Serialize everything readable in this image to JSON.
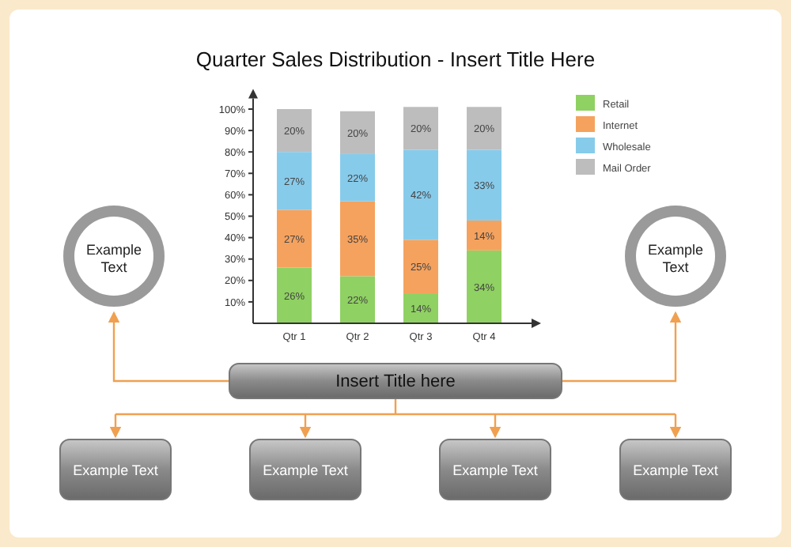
{
  "chart_data": {
    "type": "bar",
    "title": "Quarter Sales Distribution  - Insert Title Here",
    "stacked": true,
    "categories": [
      "Qtr 1",
      "Qtr 2",
      "Qtr 3",
      "Qtr 4"
    ],
    "series": [
      {
        "name": "Retail",
        "color": "#8fd162",
        "values": [
          26,
          22,
          14,
          34
        ],
        "value_labels": [
          "26%",
          "22%",
          "14%",
          "34%"
        ]
      },
      {
        "name": "Internet",
        "color": "#f5a25e",
        "values": [
          27,
          35,
          25,
          14
        ],
        "value_labels": [
          "27%",
          "35%",
          "25%",
          "14%"
        ]
      },
      {
        "name": "Wholesale",
        "color": "#87cbeb",
        "values": [
          27,
          22,
          42,
          33
        ],
        "value_labels": [
          "27%",
          "22%",
          "42%",
          "33%"
        ]
      },
      {
        "name": "Mail Order",
        "color": "#bdbdbd",
        "values": [
          20,
          20,
          20,
          20
        ],
        "value_labels": [
          "20%",
          "20%",
          "20%",
          "20%"
        ]
      }
    ],
    "ylim": [
      0,
      105
    ],
    "yticks": [
      {
        "value": 10,
        "label": "10%"
      },
      {
        "value": 20,
        "label": "20%"
      },
      {
        "value": 30,
        "label": "30%"
      },
      {
        "value": 40,
        "label": "40%"
      },
      {
        "value": 50,
        "label": "50%"
      },
      {
        "value": 60,
        "label": "60%"
      },
      {
        "value": 70,
        "label": "70%"
      },
      {
        "value": 80,
        "label": "80%"
      },
      {
        "value": 90,
        "label": "90%"
      },
      {
        "value": 100,
        "label": "100%"
      }
    ],
    "grid": false,
    "legend": "right",
    "annotations": [
      "Example Text",
      "Example Text",
      "Insert Title here",
      "Example Text",
      "Example Text",
      "Example Text",
      "Example Text"
    ]
  }
}
